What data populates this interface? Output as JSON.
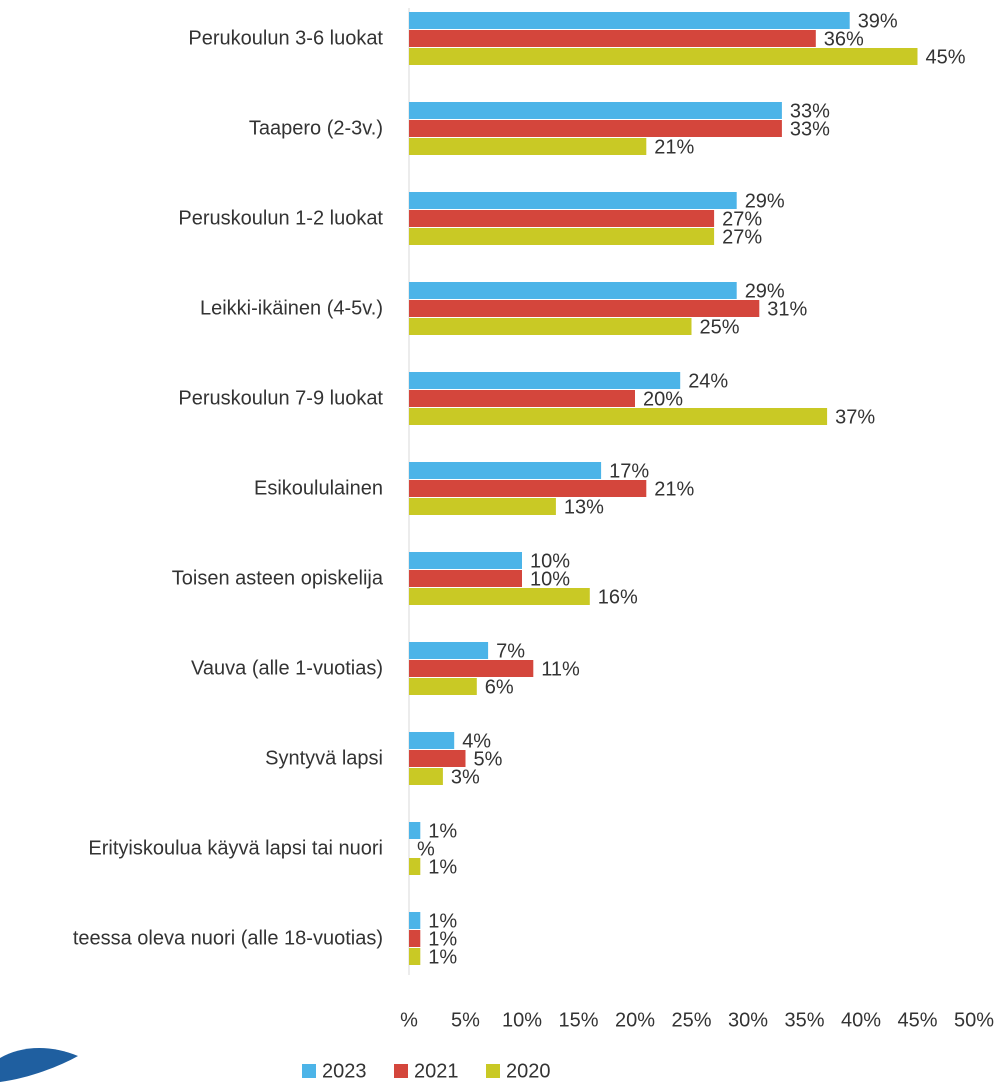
{
  "chart_data": {
    "type": "hbar",
    "categories": [
      "Perukoulun 3-6 luokat",
      "Taapero (2-3v.)",
      "Peruskoulun 1-2 luokat",
      "Leikki-ikäinen (4-5v.)",
      "Peruskoulun 7-9 luokat",
      "Esikoululainen",
      "Toisen asteen opiskelija",
      "Vauva (alle 1-vuotias)",
      "Syntyvä lapsi",
      "Erityiskoulua käyvä lapsi tai nuori",
      "teessa oleva nuori (alle 18-vuotias)"
    ],
    "series": [
      {
        "name": "2023",
        "color": "#4cb4e8",
        "values": [
          39,
          33,
          29,
          29,
          24,
          17,
          10,
          7,
          4,
          1,
          1
        ],
        "value_labels": [
          "39%",
          "33%",
          "29%",
          "29%",
          "24%",
          "17%",
          "10%",
          "7%",
          "4%",
          "1%",
          "1%"
        ]
      },
      {
        "name": "2021",
        "color": "#d4463c",
        "values": [
          36,
          33,
          27,
          31,
          20,
          21,
          10,
          11,
          5,
          0,
          1
        ],
        "value_labels": [
          "36%",
          "33%",
          "27%",
          "31%",
          "20%",
          "21%",
          "10%",
          "11%",
          "5%",
          "%",
          "1%"
        ]
      },
      {
        "name": "2020",
        "color": "#c9c925",
        "values": [
          45,
          21,
          27,
          25,
          37,
          13,
          16,
          6,
          3,
          1,
          1
        ],
        "value_labels": [
          "45%",
          "21%",
          "27%",
          "25%",
          "37%",
          "13%",
          "16%",
          "6%",
          "3%",
          "1%",
          "1%"
        ]
      }
    ],
    "xlim": [
      0,
      50
    ],
    "xticks": [
      {
        "value": 0,
        "label": "%"
      },
      {
        "value": 5,
        "label": "5%"
      },
      {
        "value": 10,
        "label": "10%"
      },
      {
        "value": 15,
        "label": "15%"
      },
      {
        "value": 20,
        "label": "20%"
      },
      {
        "value": 25,
        "label": "25%"
      },
      {
        "value": 30,
        "label": "30%"
      },
      {
        "value": 35,
        "label": "35%"
      },
      {
        "value": 40,
        "label": "40%"
      },
      {
        "value": 45,
        "label": "45%"
      },
      {
        "value": 50,
        "label": "50%"
      }
    ],
    "grid": false,
    "legend": "bottom"
  }
}
